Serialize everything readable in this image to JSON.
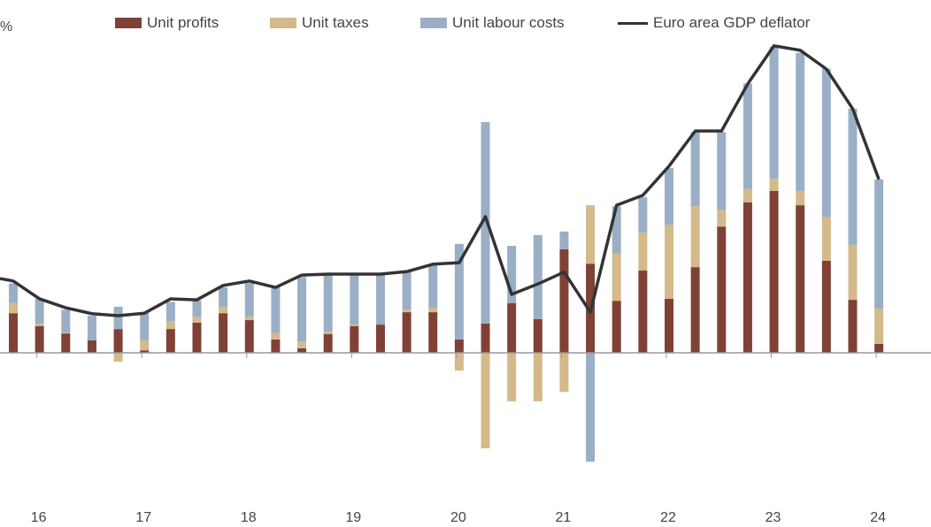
{
  "chart_data": {
    "type": "bar",
    "stacked": true,
    "ylabel": "%",
    "ylim": [
      -2.9,
      6.5
    ],
    "grid": false,
    "legend_placement": "top",
    "x_tick_labels": [
      "16",
      "17",
      "18",
      "19",
      "20",
      "21",
      "22",
      "23",
      "24"
    ],
    "categories": [
      "2015Q4",
      "2016Q1",
      "2016Q2",
      "2016Q3",
      "2016Q4",
      "2017Q1",
      "2017Q2",
      "2017Q3",
      "2017Q4",
      "2018Q1",
      "2018Q2",
      "2018Q3",
      "2018Q4",
      "2019Q1",
      "2019Q2",
      "2019Q3",
      "2019Q4",
      "2020Q1",
      "2020Q2",
      "2020Q3",
      "2020Q4",
      "2021Q1",
      "2021Q2",
      "2021Q3",
      "2021Q4",
      "2022Q1",
      "2022Q2",
      "2022Q3",
      "2022Q4",
      "2023Q1",
      "2023Q2",
      "2023Q3",
      "2023Q4",
      "2024Q1"
    ],
    "series": [
      {
        "name": "Unit profits",
        "type": "bar",
        "color": "#7f4136",
        "values": [
          0.8,
          0.54,
          0.39,
          0.25,
          0.48,
          0.05,
          0.48,
          0.61,
          0.8,
          0.66,
          0.27,
          0.09,
          0.38,
          0.54,
          0.57,
          0.82,
          0.82,
          0.27,
          0.59,
          1.0,
          0.68,
          2.09,
          1.8,
          1.05,
          1.66,
          1.09,
          1.73,
          2.55,
          3.04,
          3.27,
          2.98,
          1.86,
          1.07,
          0.18
        ]
      },
      {
        "name": "Unit taxes",
        "type": "bar",
        "color": "#d4b98a",
        "values": [
          0.21,
          0.05,
          0.02,
          0.0,
          -0.18,
          0.21,
          0.16,
          0.11,
          0.13,
          0.07,
          0.13,
          0.14,
          0.05,
          0.04,
          0.0,
          0.05,
          0.09,
          -0.36,
          -1.93,
          -0.98,
          -0.98,
          -0.79,
          1.18,
          0.96,
          0.77,
          1.5,
          1.23,
          0.34,
          0.27,
          0.25,
          0.29,
          0.88,
          1.11,
          0.71
        ]
      },
      {
        "name": "Unit labour costs",
        "type": "bar",
        "color": "#9aafc6",
        "values": [
          0.39,
          0.5,
          0.46,
          0.5,
          0.45,
          0.54,
          0.39,
          0.34,
          0.39,
          0.68,
          0.93,
          1.3,
          1.16,
          1.02,
          1.02,
          0.77,
          0.86,
          1.93,
          4.07,
          1.16,
          1.7,
          0.36,
          -2.2,
          0.95,
          0.71,
          1.14,
          1.5,
          1.57,
          2.13,
          2.66,
          2.79,
          3.0,
          2.75,
          2.61
        ]
      },
      {
        "name": "Euro area GDP deflator",
        "type": "line",
        "color": "#333333",
        "values": [
          1.45,
          1.09,
          0.91,
          0.79,
          0.75,
          0.8,
          1.09,
          1.07,
          1.36,
          1.45,
          1.32,
          1.57,
          1.59,
          1.59,
          1.59,
          1.64,
          1.79,
          1.82,
          2.75,
          1.18,
          1.39,
          1.63,
          0.82,
          2.98,
          3.18,
          3.77,
          4.48,
          4.48,
          5.43,
          6.2,
          6.11,
          5.73,
          4.93,
          3.5
        ]
      }
    ]
  }
}
